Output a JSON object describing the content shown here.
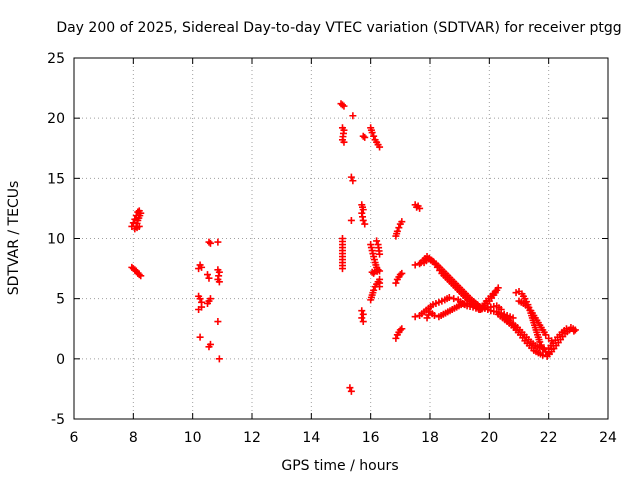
{
  "chart_data": {
    "type": "scatter",
    "title": "Day 200 of 2025, Sidereal Day-to-day VTEC variation (SDTVAR) for receiver ptgg",
    "xlabel": "GPS time / hours",
    "ylabel": "SDTVAR / TECUs",
    "xlim": [
      6,
      24
    ],
    "ylim": [
      -5,
      25
    ],
    "xticks": [
      6,
      8,
      10,
      12,
      14,
      16,
      18,
      20,
      22,
      24
    ],
    "yticks": [
      -5,
      0,
      5,
      10,
      15,
      20,
      25
    ],
    "xtick_labels": [
      "6",
      "8",
      "10",
      "12",
      "14",
      "16",
      "18",
      "20",
      "22",
      "24"
    ],
    "ytick_labels": [
      "-5",
      "0",
      "5",
      "10",
      "15",
      "20",
      "25"
    ],
    "grid": true,
    "marker": "+",
    "color": "#ff0000",
    "series": [
      {
        "name": "SDTVAR",
        "segments": [
          [
            [
              7.95,
              11.0
            ],
            [
              8.0,
              11.3
            ],
            [
              8.05,
              11.6
            ],
            [
              8.1,
              11.9
            ],
            [
              8.15,
              12.2
            ],
            [
              8.2,
              12.3
            ],
            [
              8.25,
              12.1
            ],
            [
              8.15,
              11.5
            ],
            [
              8.1,
              11.0
            ],
            [
              8.05,
              10.8
            ],
            [
              8.2,
              11.0
            ]
          ],
          [
            [
              7.95,
              7.6
            ],
            [
              8.0,
              7.5
            ],
            [
              8.05,
              7.4
            ],
            [
              8.1,
              7.3
            ],
            [
              8.15,
              7.1
            ],
            [
              8.2,
              7.0
            ],
            [
              8.25,
              6.9
            ]
          ],
          [
            [
              10.2,
              7.5
            ],
            [
              10.25,
              7.8
            ],
            [
              10.3,
              7.6
            ],
            [
              10.2,
              5.2
            ],
            [
              10.25,
              5.0
            ],
            [
              10.3,
              4.7
            ],
            [
              10.3,
              4.3
            ],
            [
              10.2,
              4.1
            ],
            [
              10.25,
              1.8
            ],
            [
              10.55,
              9.7
            ],
            [
              10.6,
              9.6
            ],
            [
              10.5,
              7.0
            ],
            [
              10.55,
              6.7
            ],
            [
              10.6,
              5.0
            ],
            [
              10.55,
              4.8
            ],
            [
              10.5,
              4.6
            ],
            [
              10.6,
              1.2
            ],
            [
              10.55,
              1.0
            ],
            [
              10.85,
              9.7
            ],
            [
              10.85,
              7.4
            ],
            [
              10.9,
              7.2
            ],
            [
              10.85,
              6.6
            ],
            [
              10.9,
              6.4
            ],
            [
              10.85,
              3.1
            ],
            [
              10.9,
              0.0
            ]
          ],
          [
            [
              15.0,
              21.2
            ],
            [
              15.05,
              21.1
            ],
            [
              15.1,
              21.0
            ],
            [
              15.05,
              19.2
            ],
            [
              15.1,
              19.0
            ],
            [
              15.05,
              18.2
            ],
            [
              15.1,
              18.0
            ],
            [
              15.05,
              10.0
            ],
            [
              15.05,
              9.0
            ],
            [
              15.05,
              8.5
            ],
            [
              15.05,
              8.0
            ],
            [
              15.05,
              7.5
            ],
            [
              15.35,
              15.1
            ],
            [
              15.4,
              14.8
            ],
            [
              15.35,
              11.5
            ],
            [
              15.4,
              20.2
            ],
            [
              15.3,
              -2.4
            ],
            [
              15.35,
              -2.7
            ]
          ],
          [
            [
              15.7,
              12.8
            ],
            [
              15.75,
              12.4
            ],
            [
              15.7,
              12.1
            ],
            [
              15.75,
              11.5
            ],
            [
              15.8,
              11.2
            ],
            [
              15.7,
              4.0
            ],
            [
              15.75,
              3.7
            ],
            [
              15.7,
              3.4
            ],
            [
              15.75,
              3.1
            ],
            [
              15.75,
              18.5
            ],
            [
              15.8,
              18.4
            ]
          ],
          [
            [
              16.0,
              19.2
            ],
            [
              16.05,
              18.8
            ],
            [
              16.1,
              18.5
            ],
            [
              16.15,
              18.2
            ],
            [
              16.2,
              18.0
            ],
            [
              16.25,
              17.8
            ],
            [
              16.3,
              17.6
            ]
          ],
          [
            [
              16.0,
              9.5
            ],
            [
              16.05,
              9.0
            ],
            [
              16.1,
              8.5
            ],
            [
              16.15,
              8.0
            ],
            [
              16.2,
              7.6
            ],
            [
              16.25,
              7.4
            ],
            [
              16.3,
              7.3
            ],
            [
              16.05,
              7.2
            ],
            [
              16.1,
              7.1
            ],
            [
              16.2,
              9.8
            ],
            [
              16.25,
              9.5
            ],
            [
              16.3,
              8.7
            ],
            [
              16.0,
              4.9
            ],
            [
              16.05,
              5.3
            ],
            [
              16.1,
              5.7
            ],
            [
              16.15,
              6.0
            ],
            [
              16.2,
              6.2
            ],
            [
              16.3,
              6.6
            ],
            [
              16.3,
              6.0
            ]
          ],
          [
            [
              16.85,
              10.2
            ],
            [
              16.9,
              10.6
            ],
            [
              16.95,
              10.9
            ],
            [
              17.0,
              11.2
            ],
            [
              17.05,
              11.4
            ],
            [
              16.85,
              6.3
            ],
            [
              16.9,
              6.6
            ],
            [
              16.95,
              6.8
            ],
            [
              17.0,
              7.0
            ],
            [
              17.05,
              7.1
            ],
            [
              16.85,
              1.7
            ],
            [
              16.9,
              2.0
            ],
            [
              16.95,
              2.2
            ],
            [
              17.0,
              2.4
            ],
            [
              17.05,
              2.5
            ]
          ],
          [
            [
              17.5,
              12.8
            ],
            [
              17.55,
              12.6
            ],
            [
              17.6,
              12.7
            ],
            [
              17.65,
              12.5
            ]
          ],
          [
            [
              17.5,
              7.8
            ],
            [
              17.65,
              7.9
            ],
            [
              17.8,
              8.0
            ],
            [
              17.95,
              8.3
            ],
            [
              18.1,
              8.1
            ],
            [
              18.25,
              7.6
            ],
            [
              18.4,
              7.1
            ],
            [
              18.6,
              6.6
            ],
            [
              18.8,
              6.1
            ],
            [
              19.0,
              5.6
            ],
            [
              19.2,
              5.1
            ],
            [
              19.4,
              4.6
            ],
            [
              19.55,
              4.3
            ],
            [
              19.7,
              4.1
            ],
            [
              19.85,
              4.4
            ],
            [
              20.0,
              4.8
            ],
            [
              20.15,
              5.3
            ],
            [
              20.25,
              5.7
            ]
          ],
          [
            [
              17.7,
              8.0
            ],
            [
              17.9,
              8.5
            ],
            [
              18.05,
              8.2
            ],
            [
              18.2,
              7.9
            ],
            [
              18.4,
              7.4
            ],
            [
              18.6,
              6.9
            ],
            [
              18.8,
              6.4
            ],
            [
              19.0,
              5.9
            ],
            [
              19.2,
              5.4
            ],
            [
              19.4,
              4.9
            ],
            [
              19.6,
              4.5
            ],
            [
              19.75,
              4.2
            ],
            [
              19.9,
              4.8
            ],
            [
              20.05,
              5.2
            ],
            [
              20.2,
              5.6
            ],
            [
              20.3,
              5.9
            ]
          ],
          [
            [
              17.5,
              3.5
            ],
            [
              17.65,
              3.6
            ],
            [
              17.8,
              3.9
            ],
            [
              17.95,
              4.2
            ],
            [
              18.1,
              4.5
            ],
            [
              18.3,
              4.7
            ],
            [
              18.5,
              4.9
            ],
            [
              18.65,
              5.1
            ],
            [
              18.8,
              5.0
            ],
            [
              18.95,
              4.9
            ],
            [
              19.1,
              4.6
            ],
            [
              19.25,
              4.4
            ],
            [
              19.45,
              4.3
            ],
            [
              19.65,
              4.1
            ],
            [
              19.85,
              4.2
            ],
            [
              20.05,
              4.3
            ],
            [
              20.25,
              4.4
            ],
            [
              20.4,
              4.1
            ]
          ],
          [
            [
              17.9,
              3.4
            ],
            [
              18.0,
              3.9
            ],
            [
              18.15,
              3.6
            ],
            [
              18.3,
              3.5
            ],
            [
              18.45,
              3.7
            ],
            [
              18.6,
              3.9
            ],
            [
              18.75,
              4.1
            ],
            [
              18.9,
              4.3
            ],
            [
              19.05,
              4.5
            ],
            [
              19.25,
              4.6
            ],
            [
              19.45,
              4.5
            ],
            [
              19.65,
              4.3
            ],
            [
              19.85,
              4.2
            ],
            [
              20.05,
              4.0
            ],
            [
              20.25,
              3.9
            ],
            [
              20.4,
              3.8
            ],
            [
              20.6,
              3.6
            ],
            [
              20.8,
              3.4
            ]
          ],
          [
            [
              20.3,
              3.7
            ],
            [
              20.45,
              3.4
            ],
            [
              20.6,
              3.1
            ],
            [
              20.75,
              2.8
            ],
            [
              20.9,
              2.4
            ],
            [
              21.05,
              2.0
            ],
            [
              21.2,
              1.5
            ],
            [
              21.35,
              1.1
            ],
            [
              21.5,
              0.7
            ],
            [
              21.65,
              0.5
            ],
            [
              21.8,
              0.3
            ],
            [
              21.95,
              0.2
            ],
            [
              22.1,
              0.6
            ],
            [
              22.25,
              1.1
            ],
            [
              22.4,
              1.6
            ],
            [
              22.55,
              2.1
            ],
            [
              22.7,
              2.4
            ],
            [
              22.85,
              2.3
            ]
          ],
          [
            [
              20.5,
              3.5
            ],
            [
              20.65,
              3.2
            ],
            [
              20.8,
              2.9
            ],
            [
              20.95,
              2.6
            ],
            [
              21.1,
              2.2
            ],
            [
              21.25,
              1.8
            ],
            [
              21.4,
              1.4
            ],
            [
              21.55,
              1.1
            ],
            [
              21.7,
              0.9
            ],
            [
              21.85,
              0.8
            ],
            [
              22.0,
              0.9
            ],
            [
              22.15,
              1.3
            ],
            [
              22.3,
              1.8
            ],
            [
              22.45,
              2.2
            ],
            [
              22.6,
              2.5
            ],
            [
              22.75,
              2.6
            ],
            [
              22.9,
              2.4
            ]
          ],
          [
            [
              20.9,
              5.5
            ],
            [
              21.0,
              5.6
            ],
            [
              21.1,
              5.4
            ],
            [
              21.2,
              5.0
            ],
            [
              21.3,
              4.5
            ],
            [
              21.4,
              3.8
            ],
            [
              21.5,
              3.0
            ],
            [
              21.6,
              2.2
            ],
            [
              21.7,
              1.4
            ],
            [
              21.8,
              0.9
            ],
            [
              21.9,
              0.6
            ],
            [
              22.0,
              0.5
            ],
            [
              22.1,
              0.8
            ]
          ],
          [
            [
              21.0,
              4.8
            ],
            [
              21.15,
              4.6
            ],
            [
              21.3,
              4.3
            ],
            [
              21.4,
              4.0
            ],
            [
              21.5,
              3.6
            ],
            [
              21.6,
              3.2
            ],
            [
              21.7,
              2.8
            ],
            [
              21.8,
              2.4
            ],
            [
              21.9,
              2.0
            ],
            [
              22.0,
              1.7
            ],
            [
              22.1,
              1.5
            ]
          ]
        ]
      }
    ]
  }
}
